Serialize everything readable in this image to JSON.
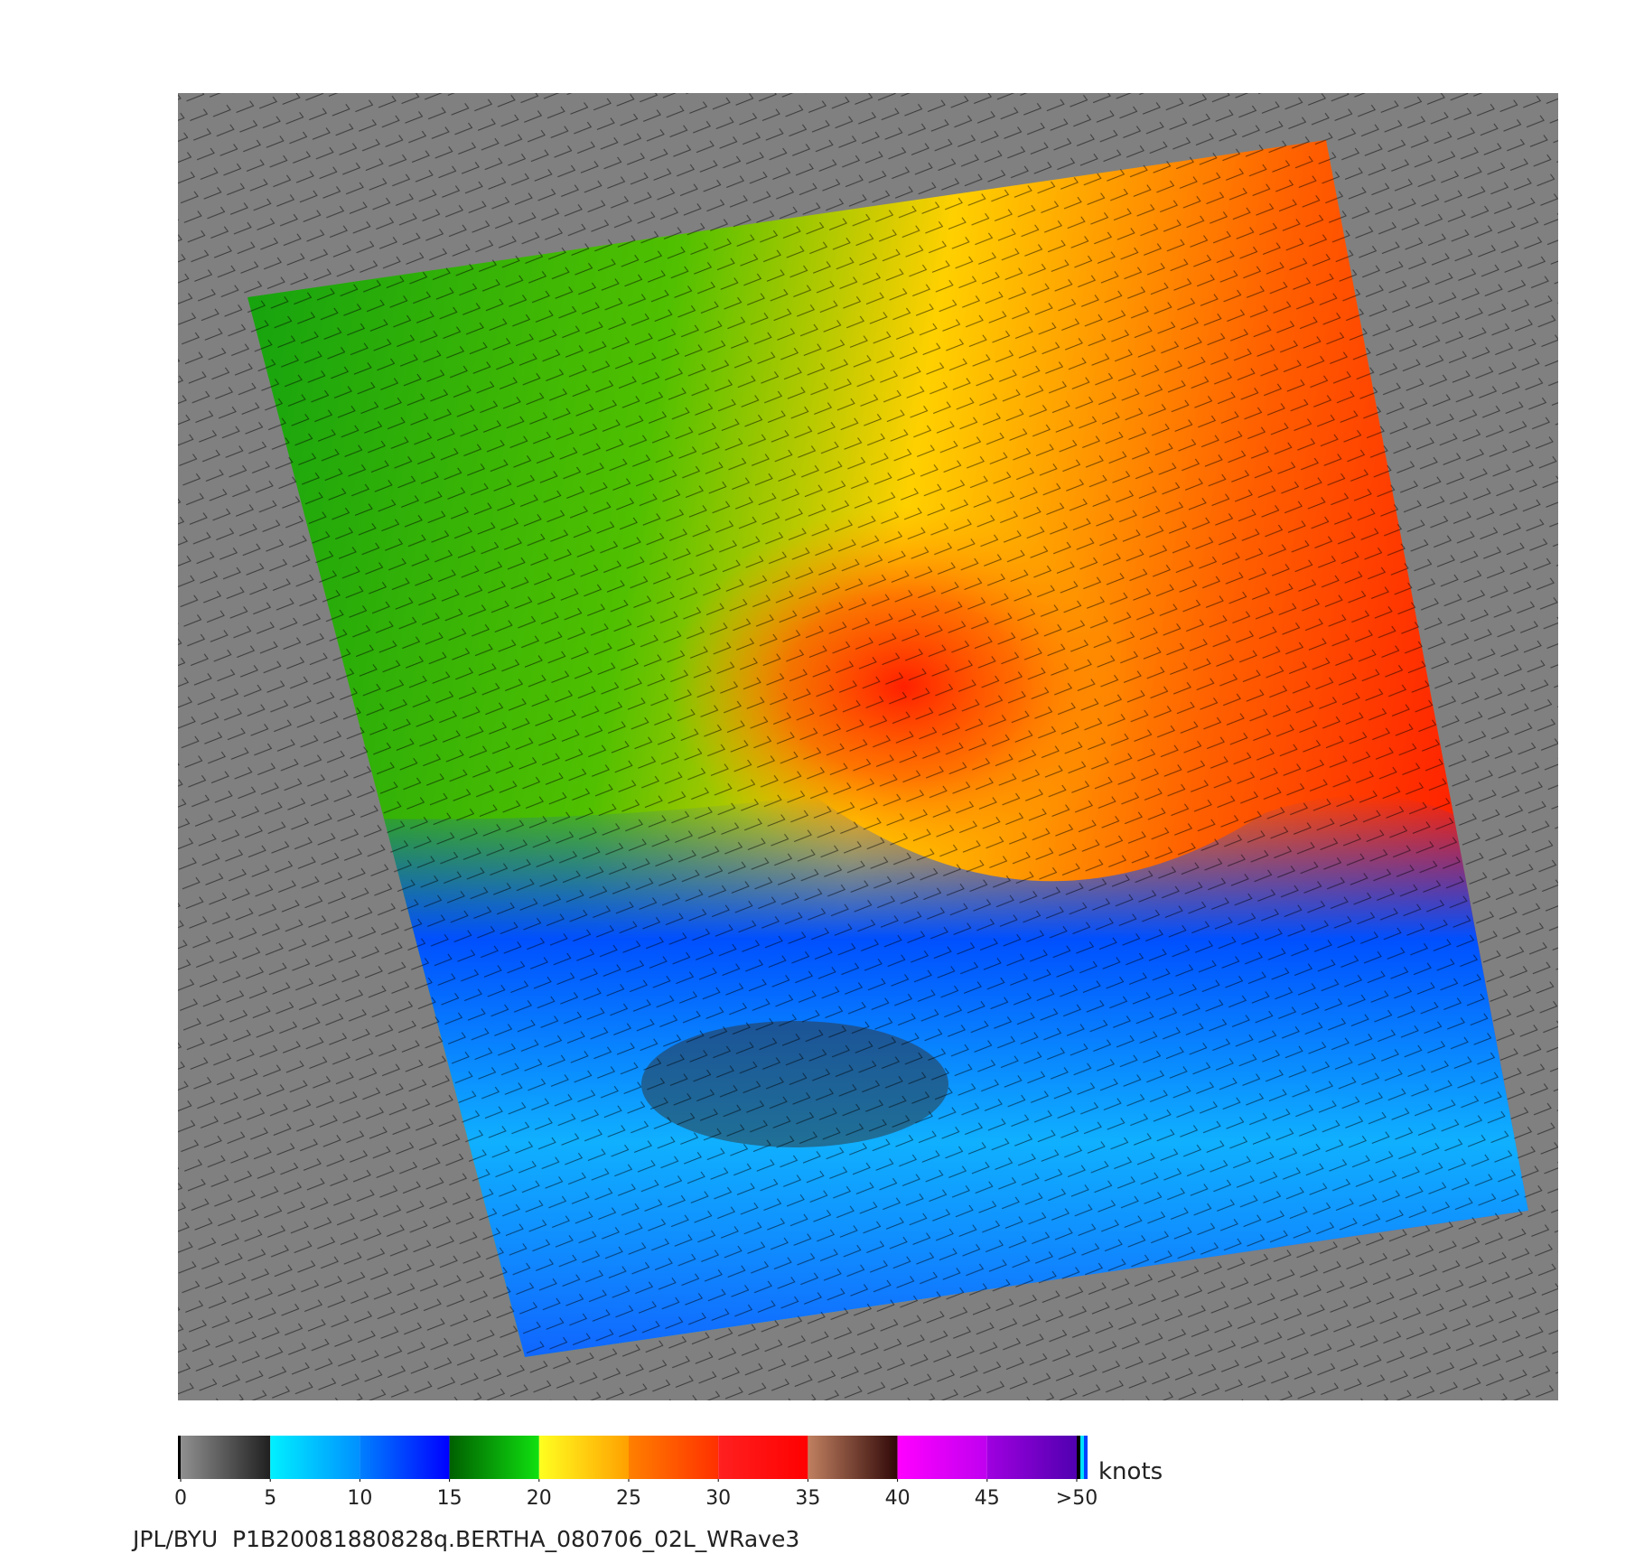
{
  "colorbar": {
    "ticks": [
      0,
      5,
      10,
      15,
      20,
      25,
      30,
      35,
      40,
      45,
      {
        "value": 50,
        "label": ">50"
      }
    ],
    "colors": [
      [
        "#909090",
        "#202020"
      ],
      [
        "#00f0ff",
        "#0090ff"
      ],
      [
        "#0080ff",
        "#0000ff"
      ],
      [
        "#006000",
        "#10e010"
      ],
      [
        "#ffff20",
        "#ffa000"
      ],
      [
        "#ff8000",
        "#ff3000"
      ],
      [
        "#ff2020",
        "#ff0000"
      ],
      [
        "#c08060",
        "#300808"
      ],
      [
        "#ff00ff",
        "#c000f0"
      ],
      [
        "#a000e0",
        "#5000b0"
      ]
    ],
    "unit": "knots"
  },
  "caption": "JPL/BYU  P1B20081880828q.BERTHA_080706_02L_WRave3"
}
